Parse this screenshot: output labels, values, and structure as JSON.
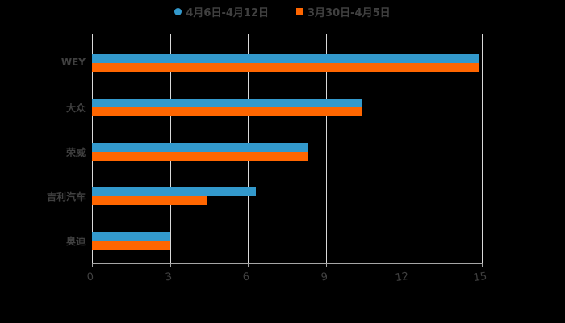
{
  "chart_data": {
    "type": "bar",
    "orientation": "horizontal",
    "title": "",
    "categories": [
      "WEY",
      "大众",
      "荣威",
      "吉利汽车",
      "奥迪"
    ],
    "series": [
      {
        "name": "4月6日-4月12日",
        "color": "#3399cc",
        "values": [
          14.9,
          10.4,
          8.3,
          6.3,
          3.0
        ]
      },
      {
        "name": "3月30日-4月5日",
        "color": "#ff6600",
        "values": [
          14.9,
          10.4,
          8.3,
          4.4,
          3.0
        ]
      }
    ],
    "xlabel": "",
    "ylabel": "",
    "xlim": [
      0,
      15
    ],
    "xticks": [
      "0",
      "3",
      "6",
      "9",
      "12",
      "15"
    ],
    "grid": true,
    "legend_position": "top"
  },
  "legend": {
    "series1": "4月6日-4月12日",
    "series2": "3月30日-4月5日"
  }
}
